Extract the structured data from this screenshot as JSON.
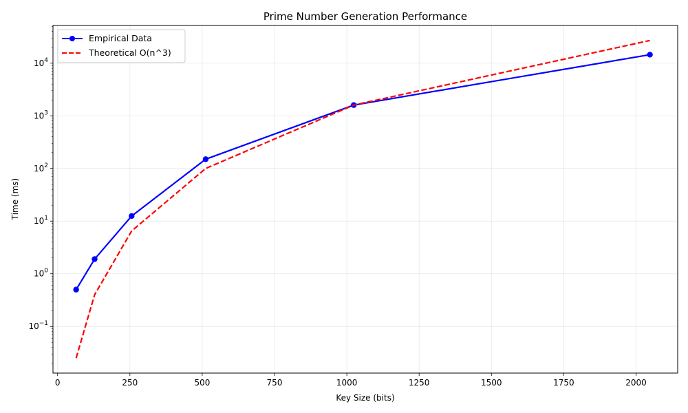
{
  "chart_data": {
    "type": "line",
    "title": "Prime Number Generation Performance",
    "xlabel": "Key Size (bits)",
    "ylabel": "Time (ms)",
    "xlim": [
      -16,
      2144
    ],
    "ylim": [
      0.013,
      52000
    ],
    "yscale": "log",
    "grid": true,
    "legend_position": "top-left",
    "x_ticks": [
      0,
      250,
      500,
      750,
      1000,
      1250,
      1500,
      1750,
      2000
    ],
    "x_tick_labels": [
      "0",
      "250",
      "500",
      "750",
      "1000",
      "1250",
      "1500",
      "1750",
      "2000"
    ],
    "y_ticks": [
      0.1,
      1,
      10,
      100,
      1000,
      10000
    ],
    "y_tick_labels": [
      {
        "base": "10",
        "exp": "−1"
      },
      {
        "base": "10",
        "exp": "0"
      },
      {
        "base": "10",
        "exp": "1"
      },
      {
        "base": "10",
        "exp": "2"
      },
      {
        "base": "10",
        "exp": "3"
      },
      {
        "base": "10",
        "exp": "4"
      }
    ],
    "series": [
      {
        "name": "Empirical Data",
        "color": "#0000ff",
        "style": "solid",
        "marker": "circle",
        "x": [
          64,
          128,
          256,
          512,
          1024,
          2048
        ],
        "values": [
          0.5,
          1.9,
          12.5,
          150,
          1600,
          14500
        ]
      },
      {
        "name": "Theoretical O(n^3)",
        "color": "#ff0000",
        "style": "dashed",
        "marker": "none",
        "x": [
          64,
          128,
          256,
          512,
          1024,
          2048
        ],
        "values": [
          0.025,
          0.4,
          6.5,
          100,
          1600,
          27000
        ]
      }
    ]
  }
}
